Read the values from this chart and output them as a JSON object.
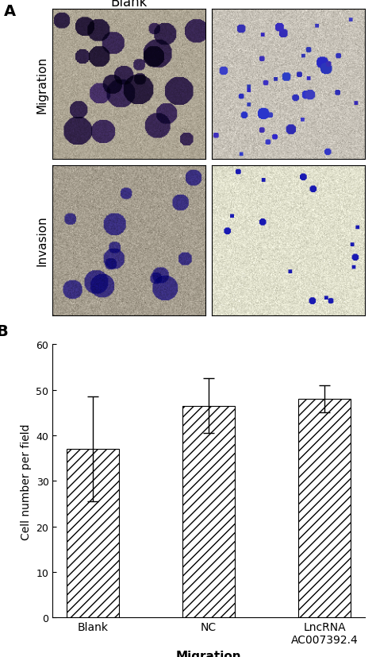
{
  "panel_A_label": "A",
  "panel_B_label": "B",
  "blank_label": "Blank",
  "migration_label": "Migration",
  "invasion_label": "Invasion",
  "bar_categories": [
    "Blank",
    "NC",
    "LncRNA\nAC007392.4"
  ],
  "bar_values": [
    37.0,
    46.5,
    48.0
  ],
  "bar_errors": [
    11.5,
    6.0,
    3.0
  ],
  "bar_color": "#888888",
  "bar_hatch": "///",
  "ylabel": "Cell number per field",
  "xlabel": "Migration",
  "ylim": [
    0,
    60
  ],
  "yticks": [
    0,
    10,
    20,
    30,
    40,
    50,
    60
  ],
  "figure_bg": "#ffffff",
  "fig_width": 4.74,
  "fig_height": 8.28,
  "dpi": 100
}
